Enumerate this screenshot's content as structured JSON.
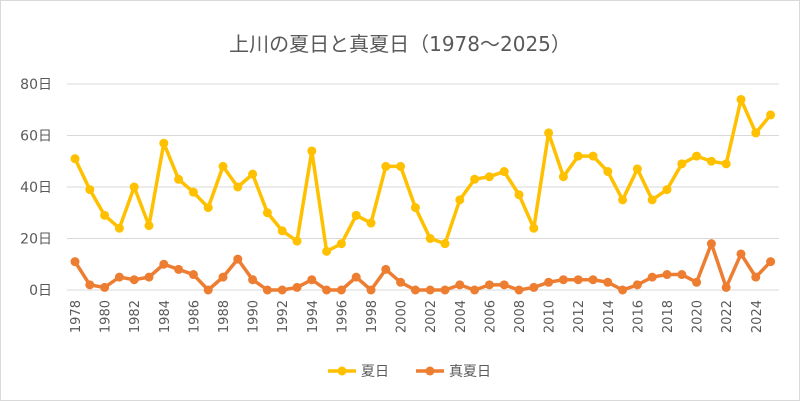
{
  "chart_data": {
    "type": "line",
    "title": "上川の夏日と真夏日（1978～2025）",
    "xlabel": "",
    "ylabel": "",
    "ylim": [
      0,
      80
    ],
    "yticks": [
      "0日",
      "20日",
      "40日",
      "60日",
      "80日"
    ],
    "grid": true,
    "legend_position": "bottom",
    "x": [
      1978,
      1979,
      1980,
      1981,
      1982,
      1983,
      1984,
      1985,
      1986,
      1987,
      1988,
      1989,
      1990,
      1991,
      1992,
      1993,
      1994,
      1995,
      1996,
      1997,
      1998,
      1999,
      2000,
      2001,
      2002,
      2003,
      2004,
      2005,
      2006,
      2007,
      2008,
      2009,
      2010,
      2011,
      2012,
      2013,
      2014,
      2015,
      2016,
      2017,
      2018,
      2019,
      2020,
      2021,
      2022,
      2023,
      2024,
      2025
    ],
    "xtick_labels": [
      "1978",
      "1980",
      "1982",
      "1984",
      "1986",
      "1988",
      "1990",
      "1992",
      "1994",
      "1996",
      "1998",
      "2000",
      "2002",
      "2004",
      "2006",
      "2008",
      "2010",
      "2012",
      "2014",
      "2016",
      "2018",
      "2020",
      "2022",
      "2024"
    ],
    "series": [
      {
        "name": "夏日",
        "color": "#FFC000",
        "values": [
          51,
          39,
          29,
          24,
          40,
          25,
          57,
          43,
          38,
          32,
          48,
          40,
          45,
          30,
          23,
          19,
          54,
          15,
          18,
          29,
          26,
          48,
          48,
          32,
          20,
          18,
          35,
          43,
          44,
          46,
          37,
          24,
          61,
          44,
          52,
          52,
          46,
          35,
          47,
          35,
          39,
          49,
          52,
          50,
          49,
          74,
          61,
          68
        ]
      },
      {
        "name": "真夏日",
        "color": "#ED7D31",
        "values": [
          11,
          2,
          1,
          5,
          4,
          5,
          10,
          8,
          6,
          0,
          5,
          12,
          4,
          0,
          0,
          1,
          4,
          0,
          0,
          5,
          0,
          8,
          3,
          0,
          0,
          0,
          2,
          0,
          2,
          2,
          0,
          1,
          3,
          4,
          4,
          4,
          3,
          0,
          2,
          5,
          6,
          6,
          3,
          18,
          1,
          14,
          5,
          11
        ]
      }
    ]
  }
}
